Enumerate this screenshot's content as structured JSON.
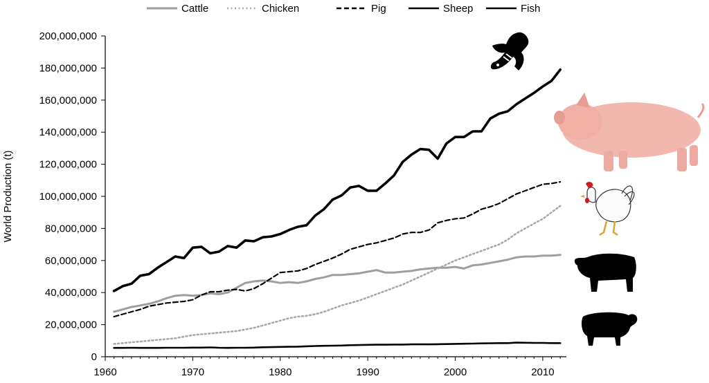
{
  "chart_data": {
    "type": "line",
    "title": "",
    "xlabel": "",
    "ylabel": "World Production (t)",
    "xlim": [
      1960,
      2013
    ],
    "ylim": [
      0,
      200000000
    ],
    "x_ticks": [
      "1960",
      "1970",
      "1980",
      "1990",
      "2000",
      "2010"
    ],
    "y_ticks": [
      "0",
      "20,000,000",
      "40,000,000",
      "60,000,000",
      "80,000,000",
      "100,000,000",
      "120,000,000",
      "140,000,000",
      "160,000,000",
      "180,000,000",
      "200,000,000"
    ],
    "legend_position": "top",
    "x": [
      1961,
      1962,
      1963,
      1964,
      1965,
      1966,
      1967,
      1968,
      1969,
      1970,
      1971,
      1972,
      1973,
      1974,
      1975,
      1976,
      1977,
      1978,
      1979,
      1980,
      1981,
      1982,
      1983,
      1984,
      1985,
      1986,
      1987,
      1988,
      1989,
      1990,
      1991,
      1992,
      1993,
      1994,
      1995,
      1996,
      1997,
      1998,
      1999,
      2000,
      2001,
      2002,
      2003,
      2004,
      2005,
      2006,
      2007,
      2008,
      2009,
      2010,
      2011,
      2012
    ],
    "series": [
      {
        "name": "Cattle",
        "color": "#9e9e9e",
        "style": "solid",
        "values": [
          28000000,
          29500000,
          31000000,
          32000000,
          33000000,
          34500000,
          36500000,
          38000000,
          38500000,
          38000000,
          38500000,
          39500000,
          39000000,
          40000000,
          43000000,
          46000000,
          47000000,
          47500000,
          47000000,
          46000000,
          46500000,
          46000000,
          47000000,
          48500000,
          49500000,
          51000000,
          51000000,
          51500000,
          52000000,
          53000000,
          54000000,
          52500000,
          52500000,
          53000000,
          53500000,
          54500000,
          55000000,
          55500000,
          55500000,
          56000000,
          55000000,
          57000000,
          57500000,
          58500000,
          59500000,
          60500000,
          62000000,
          62500000,
          62500000,
          63000000,
          63000000,
          63500000
        ]
      },
      {
        "name": "Chicken",
        "color": "#a8a8a8",
        "style": "dotted",
        "values": [
          8000000,
          8500000,
          9000000,
          9500000,
          10000000,
          10500000,
          11000000,
          11500000,
          12500000,
          13500000,
          14000000,
          14500000,
          15000000,
          15500000,
          16000000,
          17000000,
          18000000,
          19500000,
          21000000,
          22500000,
          24000000,
          25000000,
          25500000,
          26500000,
          28000000,
          30000000,
          32000000,
          33500000,
          35000000,
          37000000,
          39000000,
          41000000,
          43000000,
          45000000,
          47500000,
          50000000,
          52500000,
          55000000,
          57500000,
          60000000,
          62000000,
          64000000,
          66000000,
          68000000,
          70000000,
          73000000,
          77000000,
          80000000,
          83000000,
          86000000,
          90000000,
          94000000
        ]
      },
      {
        "name": "Pig",
        "color": "#000000",
        "style": "dashed",
        "values": [
          25000000,
          26500000,
          28000000,
          29500000,
          31500000,
          32500000,
          33500000,
          34000000,
          34500000,
          35500000,
          38500000,
          40500000,
          40500000,
          41500000,
          42000000,
          41000000,
          42500000,
          45500000,
          49000000,
          52500000,
          53000000,
          53500000,
          55000000,
          57500000,
          59500000,
          61500000,
          64000000,
          67000000,
          68500000,
          70000000,
          71000000,
          72500000,
          74000000,
          76500000,
          77500000,
          77500000,
          79000000,
          83500000,
          85000000,
          86000000,
          86500000,
          89000000,
          92000000,
          93500000,
          95500000,
          98500000,
          101500000,
          103500000,
          105500000,
          107500000,
          108000000,
          109000000
        ]
      },
      {
        "name": "Sheep",
        "color": "#000000",
        "style": "solid",
        "values": [
          5500000,
          5500000,
          5600000,
          5500000,
          5500000,
          5500000,
          5600000,
          5600000,
          5600000,
          5700000,
          5700000,
          5800000,
          5600000,
          5500000,
          5600000,
          5600000,
          5700000,
          5900000,
          6000000,
          6100000,
          6200000,
          6300000,
          6500000,
          6700000,
          6800000,
          6900000,
          7000000,
          7200000,
          7300000,
          7400000,
          7500000,
          7500000,
          7600000,
          7600000,
          7700000,
          7700000,
          7700000,
          7800000,
          7900000,
          8000000,
          8100000,
          8200000,
          8300000,
          8400000,
          8500000,
          8500000,
          8800000,
          8700000,
          8600000,
          8600000,
          8500000,
          8500000
        ]
      },
      {
        "name": "Fish",
        "color": "#000000",
        "style": "solid",
        "values": [
          41000000,
          44000000,
          45500000,
          50500000,
          51500000,
          55500000,
          59000000,
          62500000,
          61500000,
          68000000,
          68500000,
          64500000,
          65500000,
          69000000,
          68000000,
          72500000,
          72000000,
          74500000,
          75000000,
          76500000,
          79000000,
          81000000,
          82000000,
          88000000,
          92000000,
          98000000,
          100500000,
          105500000,
          106500000,
          103500000,
          103500000,
          108000000,
          113000000,
          121500000,
          126000000,
          129500000,
          129000000,
          123500000,
          133000000,
          137000000,
          137000000,
          140500000,
          140500000,
          148500000,
          151500000,
          153000000,
          157500000,
          161000000,
          164500000,
          168500000,
          172000000,
          179000000
        ]
      }
    ]
  },
  "icons": [
    "fish-icon",
    "pig-icon",
    "chicken-icon",
    "cattle-icon",
    "sheep-icon"
  ]
}
